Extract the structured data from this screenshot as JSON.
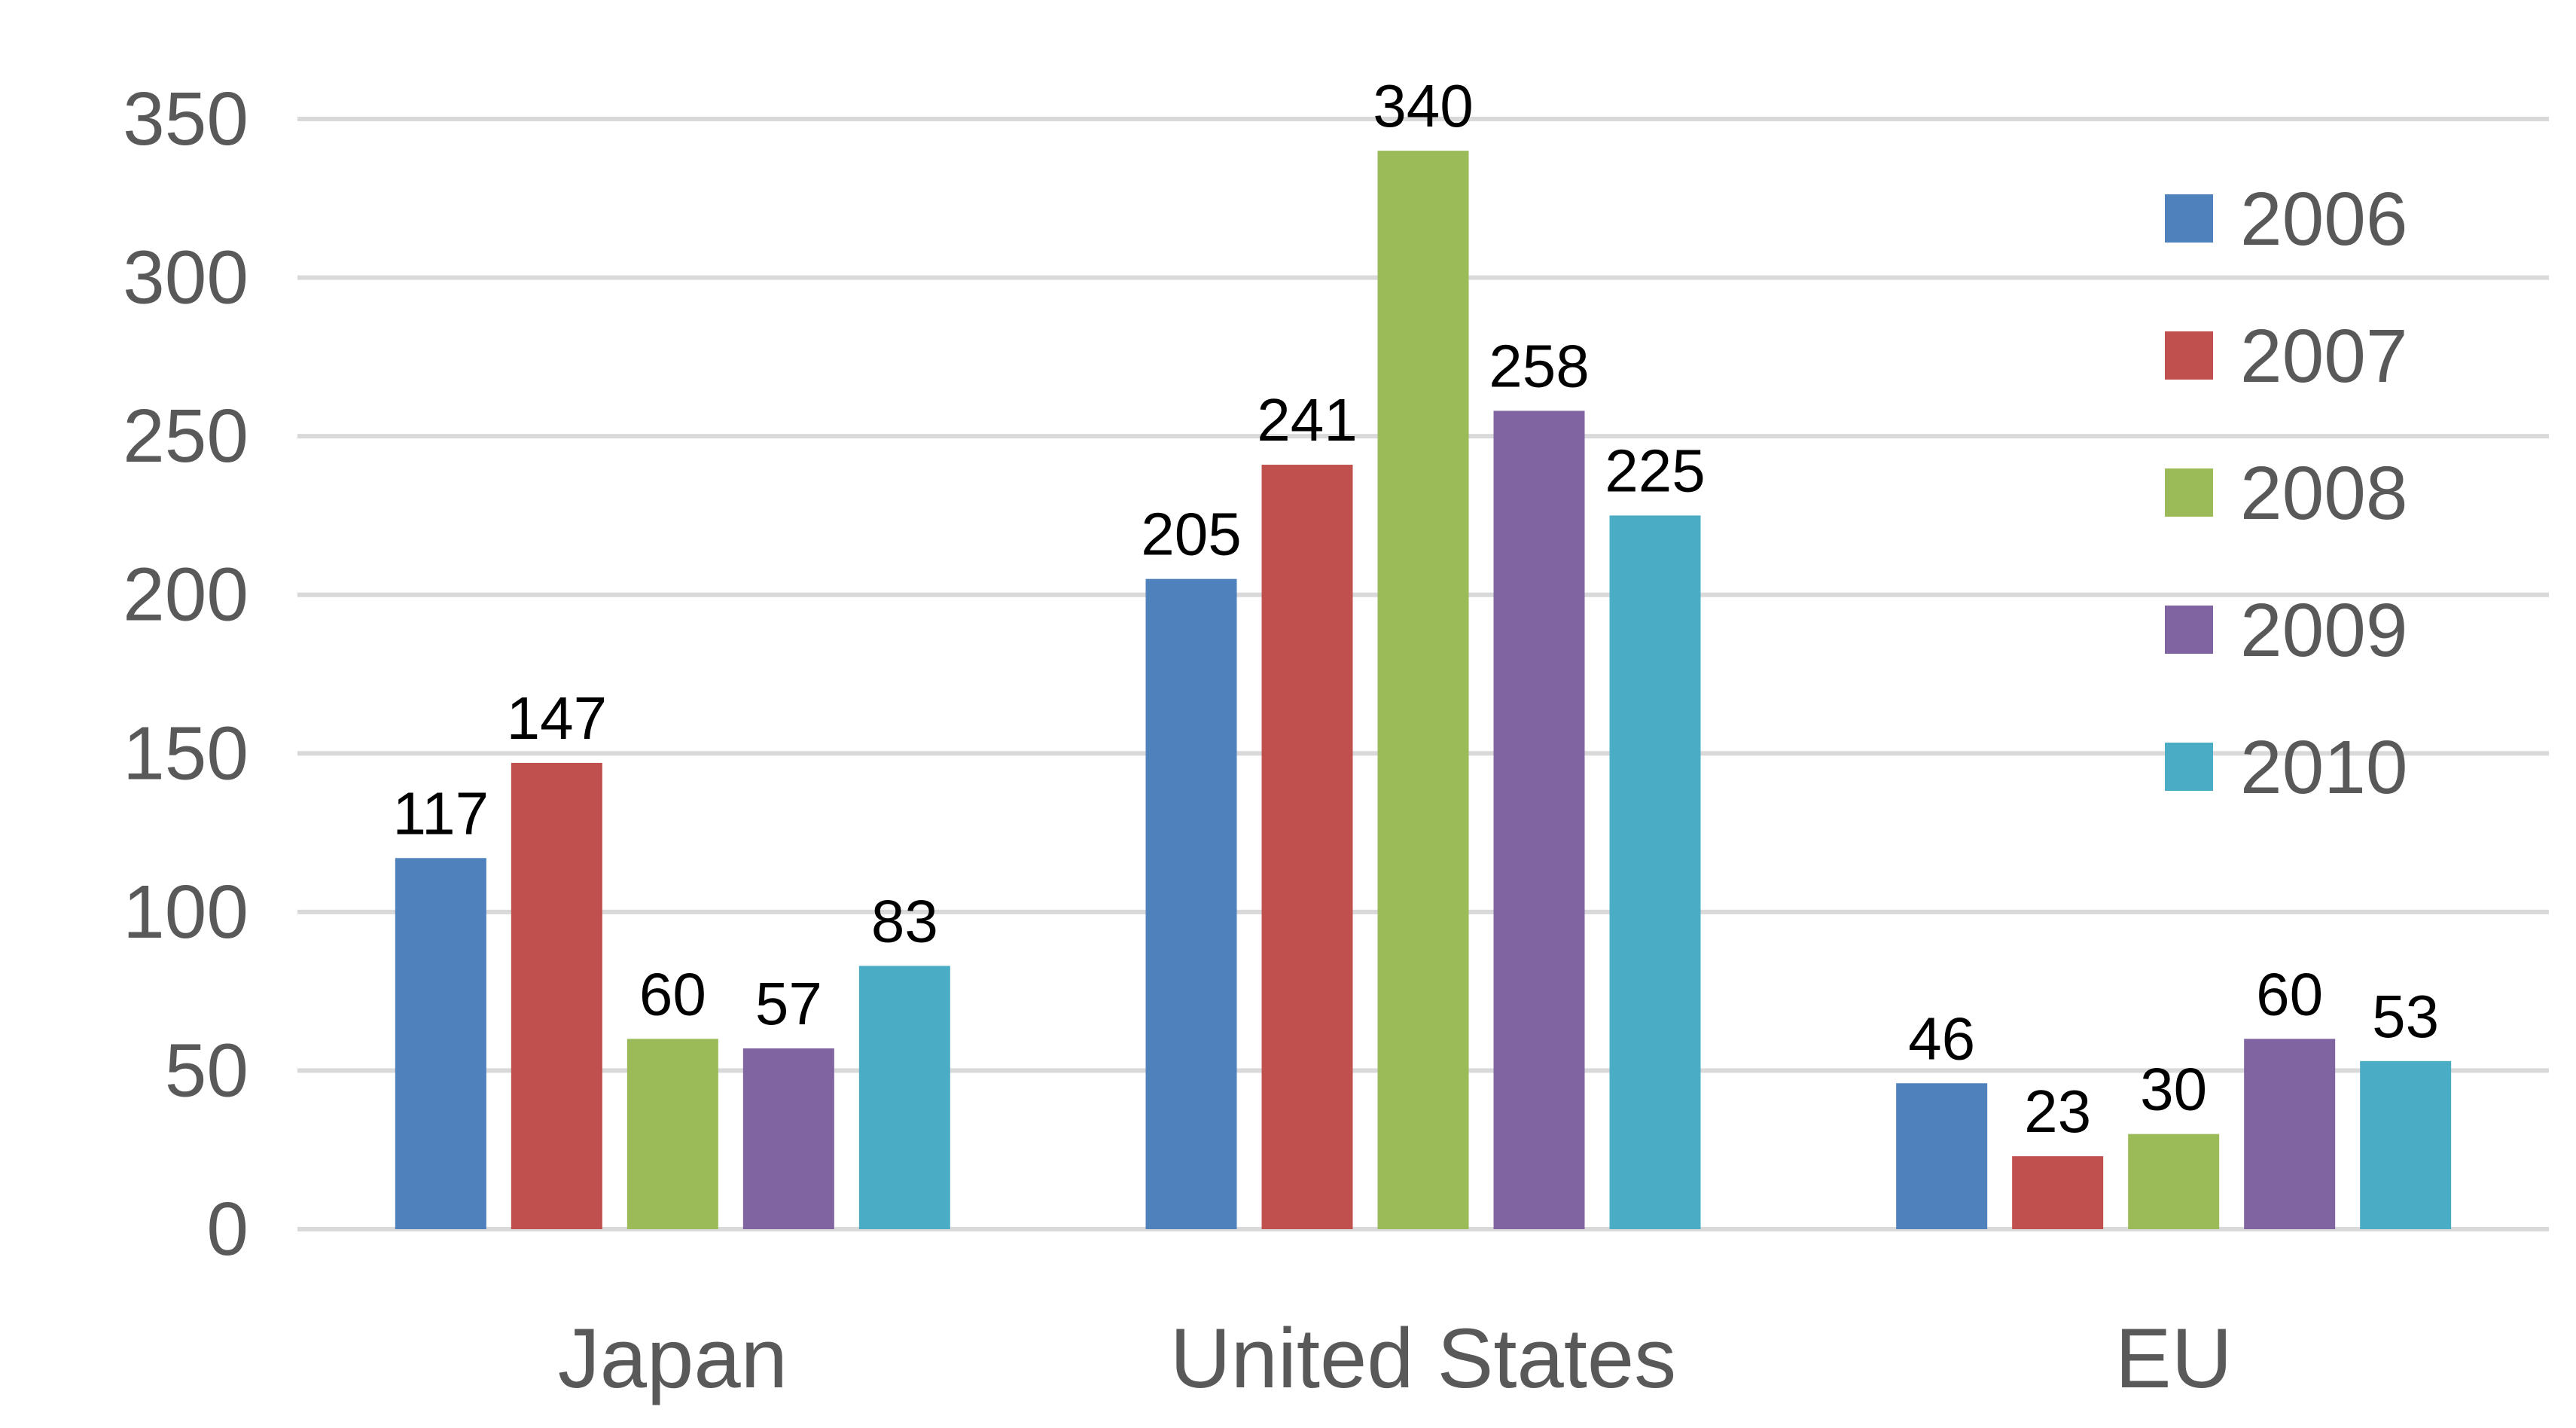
{
  "chart_data": {
    "type": "bar",
    "title": "",
    "xlabel": "",
    "ylabel": "",
    "categories": [
      "Japan",
      "United States",
      "EU"
    ],
    "series": [
      {
        "name": "2006",
        "color": "#4f81bd",
        "values": [
          117,
          205,
          46
        ]
      },
      {
        "name": "2007",
        "color": "#c0504d",
        "values": [
          147,
          241,
          23
        ]
      },
      {
        "name": "2008",
        "color": "#9bbb59",
        "values": [
          60,
          340,
          30
        ]
      },
      {
        "name": "2009",
        "color": "#8064a2",
        "values": [
          57,
          258,
          60
        ]
      },
      {
        "name": "2010",
        "color": "#4bacc6",
        "values": [
          83,
          225,
          53
        ]
      }
    ],
    "ylim": [
      0,
      350
    ],
    "yticks": [
      0,
      50,
      100,
      150,
      200,
      250,
      300,
      350
    ],
    "grid": true,
    "legend": "right",
    "data_labels": true
  }
}
